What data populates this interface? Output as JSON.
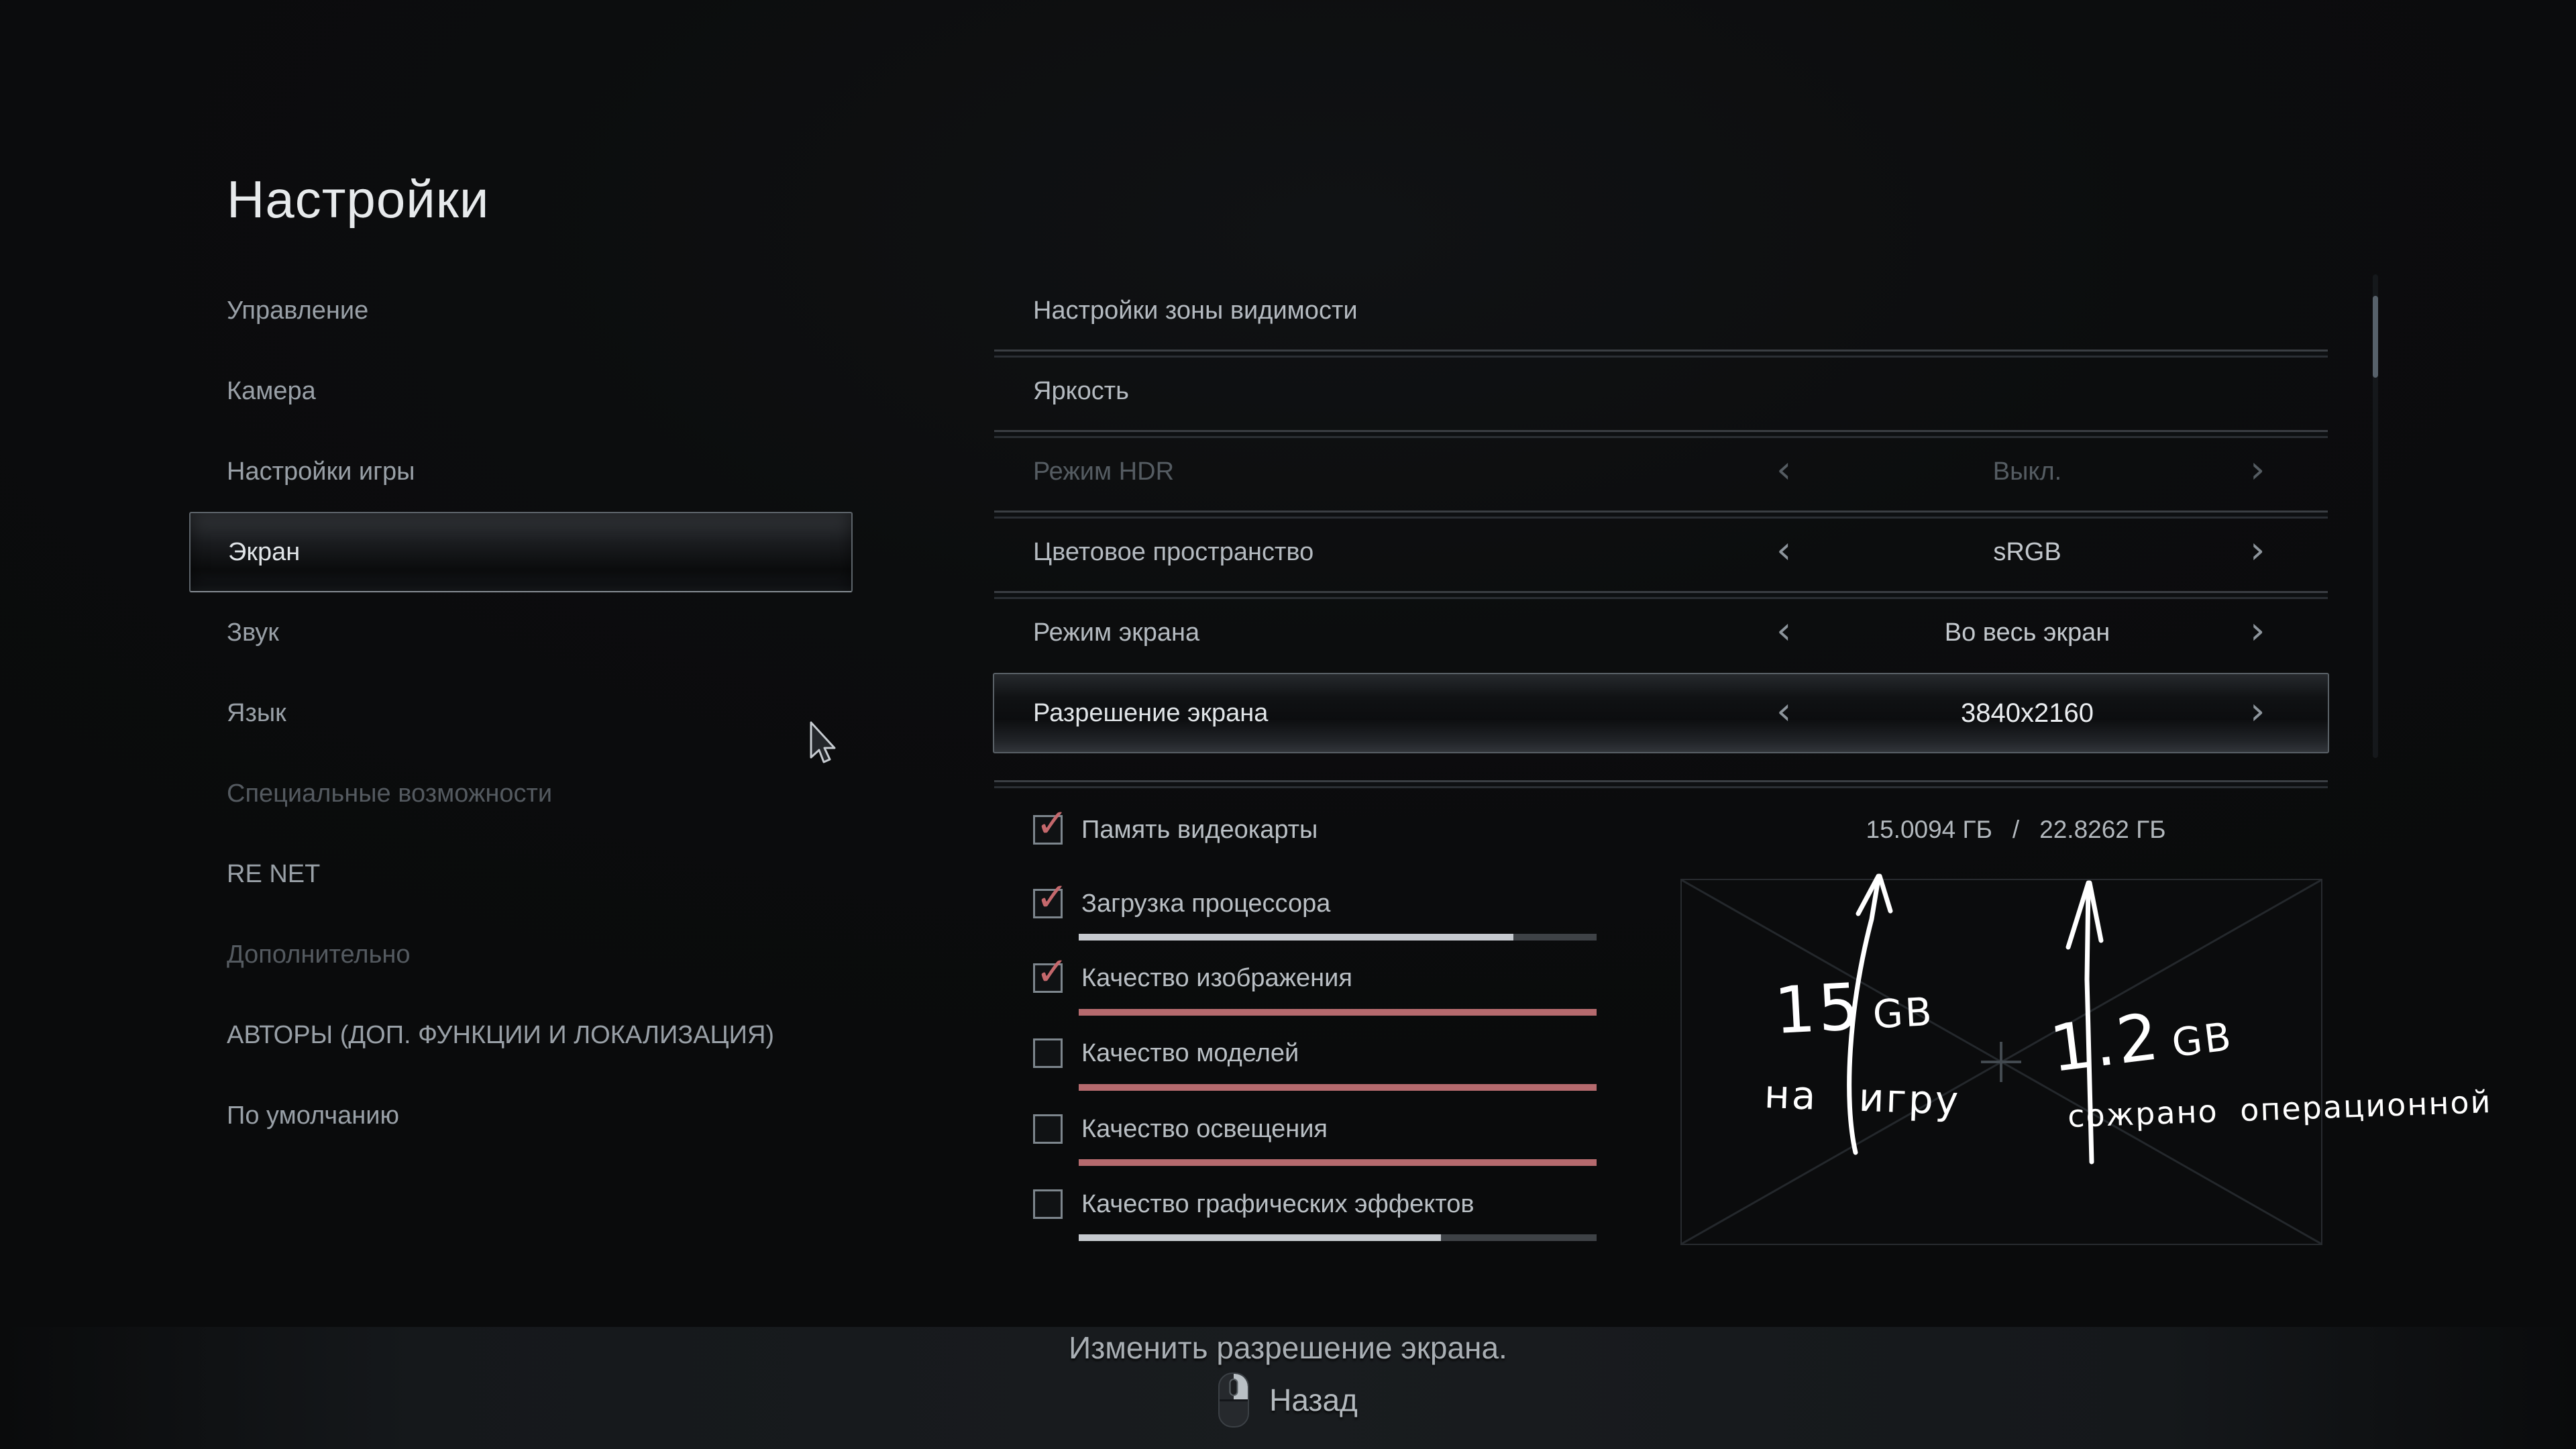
{
  "page_title": "Настройки",
  "sidebar": {
    "items": [
      {
        "label": "Управление",
        "state": "normal"
      },
      {
        "label": "Камера",
        "state": "normal"
      },
      {
        "label": "Настройки игры",
        "state": "normal"
      },
      {
        "label": "Экран",
        "state": "selected"
      },
      {
        "label": "Звук",
        "state": "normal"
      },
      {
        "label": "Язык",
        "state": "normal"
      },
      {
        "label": "Специальные возможности",
        "state": "disabled"
      },
      {
        "label": "RE NET",
        "state": "normal"
      },
      {
        "label": "Дополнительно",
        "state": "disabled"
      },
      {
        "label": "АВТОРЫ (ДОП. ФУНКЦИИ И ЛОКАЛИЗАЦИЯ)",
        "state": "normal"
      },
      {
        "label": "По умолчанию",
        "state": "normal"
      }
    ]
  },
  "settings": {
    "rows": [
      {
        "label": "Настройки зоны видимости"
      },
      {
        "label": "Яркость"
      },
      {
        "label": "Режим HDR",
        "value": "Выкл.",
        "disabled": true
      },
      {
        "label": "Цветовое пространство",
        "value": "sRGB"
      },
      {
        "label": "Режим экрана",
        "value": "Во весь экран"
      },
      {
        "label": "Разрешение экрана",
        "value": "3840x2160",
        "selected": true
      }
    ]
  },
  "icons": {
    "chevron_left": "‹",
    "chevron_right": "›",
    "check": "✓"
  },
  "performance": {
    "metrics": [
      {
        "label": "Память видеокарты",
        "checked": true,
        "check": "✓"
      },
      {
        "label": "Загрузка процессора",
        "checked": true,
        "check": "✓",
        "bar": {
          "style": "gray",
          "fill_percent": 84
        }
      },
      {
        "label": "Качество изображения",
        "checked": true,
        "check": "✓",
        "bar": {
          "style": "red",
          "fill_percent": 100
        }
      },
      {
        "label": "Качество моделей",
        "checked": false,
        "check": "",
        "bar": {
          "style": "red",
          "fill_percent": 100
        }
      },
      {
        "label": "Качество освещения",
        "checked": false,
        "check": "",
        "bar": {
          "style": "red",
          "fill_percent": 100
        }
      },
      {
        "label": "Качество графических эффектов",
        "checked": false,
        "check": "",
        "bar": {
          "style": "gray",
          "fill_percent": 70
        }
      }
    ],
    "vram": {
      "used": "15.0094 ГБ",
      "separator": "/",
      "total": "22.8262 ГБ"
    }
  },
  "annotations": {
    "vram_game": {
      "value": "15",
      "unit": "GB",
      "caption": "на игру"
    },
    "vram_os": {
      "value": "1.2",
      "unit": "GB",
      "caption": "сожрано операционной"
    }
  },
  "footer": {
    "hint": "Изменить разрешение экрана.",
    "back_label": "Назад"
  },
  "colors": {
    "accent_check": "#c4686c",
    "bar_red": "#b56a6e",
    "bar_fill_gray": "#c6cacf",
    "handwriting": "#ffffff"
  }
}
